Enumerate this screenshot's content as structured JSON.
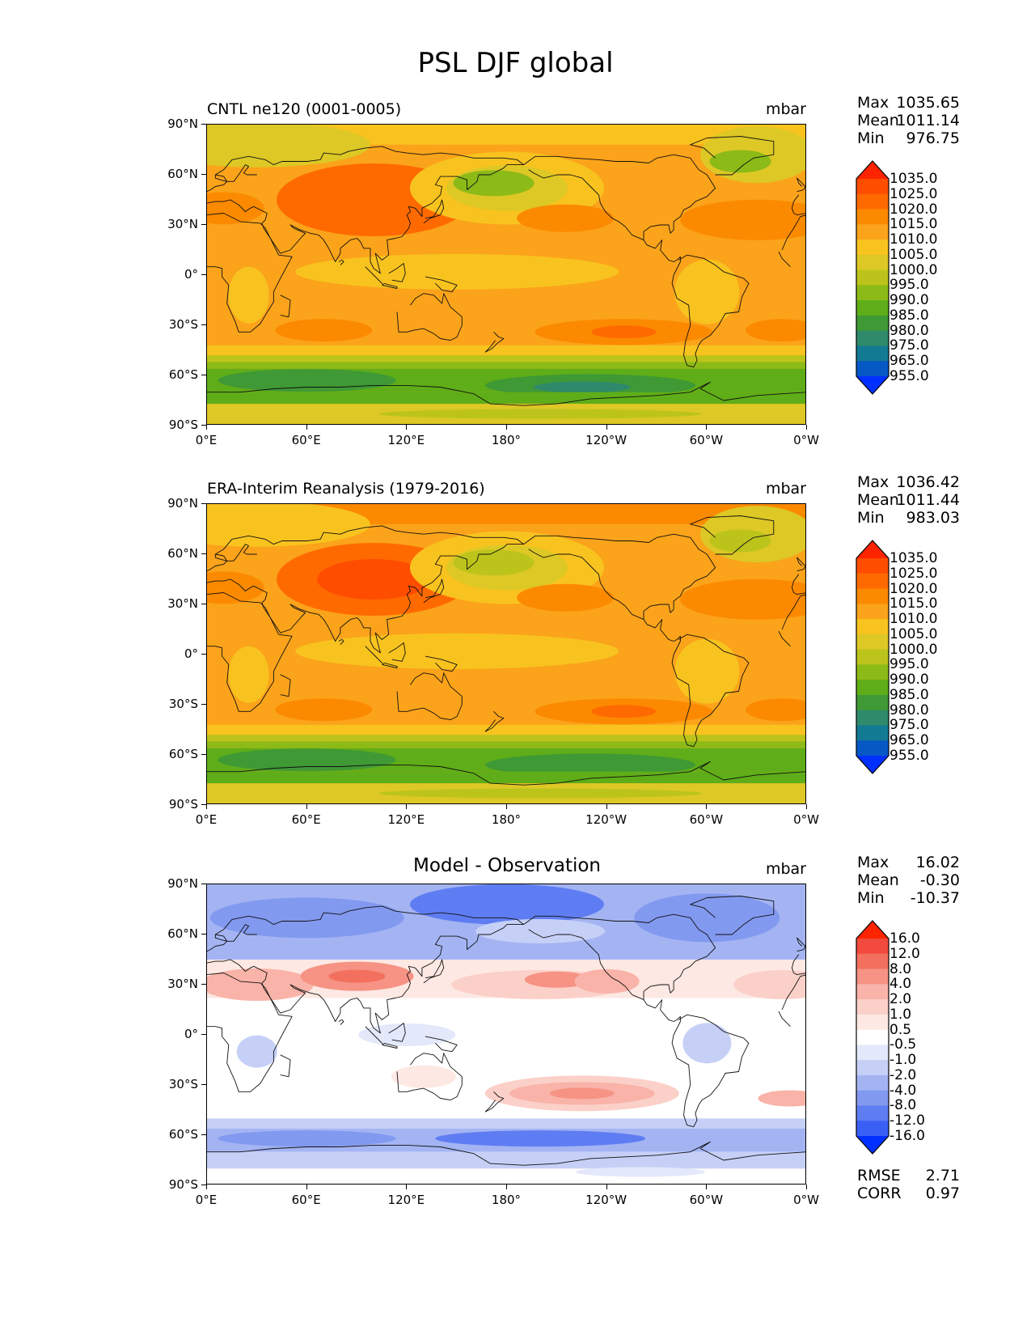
{
  "figure_title": "PSL DJF global",
  "chart_data": [
    {
      "type": "heatmap",
      "title": "CNTL ne120 (0001-0005)",
      "units": "mbar",
      "x_ticks": [
        "0°E",
        "60°E",
        "120°E",
        "180°",
        "120°W",
        "60°W",
        "0°W"
      ],
      "y_ticks": [
        "90°N",
        "60°N",
        "30°N",
        "0°",
        "30°S",
        "60°S",
        "90°S"
      ],
      "stats": {
        "max_label": "Max",
        "max": "1035.65",
        "mean_label": "Mean",
        "mean": "1011.14",
        "min_label": "Min",
        "min": "976.75"
      },
      "colorbar_levels": [
        "1035.0",
        "1025.0",
        "1020.0",
        "1015.0",
        "1010.0",
        "1005.0",
        "1000.0",
        "995.0",
        "990.0",
        "985.0",
        "980.0",
        "975.0",
        "965.0",
        "955.0"
      ],
      "colorbar_colors": [
        "#ff2400",
        "#ff4d00",
        "#ff6a00",
        "#fc8a00",
        "#fba31a",
        "#f8c31f",
        "#ddc825",
        "#bcc41b",
        "#8cba17",
        "#5fad18",
        "#3f9935",
        "#2e8a6a",
        "#137a93",
        "#0658c4",
        "#0030ff"
      ]
    },
    {
      "type": "heatmap",
      "title": "ERA-Interim Reanalysis (1979-2016)",
      "units": "mbar",
      "x_ticks": [
        "0°E",
        "60°E",
        "120°E",
        "180°",
        "120°W",
        "60°W",
        "0°W"
      ],
      "y_ticks": [
        "90°N",
        "60°N",
        "30°N",
        "0°",
        "30°S",
        "60°S",
        "90°S"
      ],
      "stats": {
        "max_label": "Max",
        "max": "1036.42",
        "mean_label": "Mean",
        "mean": "1011.44",
        "min_label": "Min",
        "min": "983.03"
      },
      "colorbar_levels": [
        "1035.0",
        "1025.0",
        "1020.0",
        "1015.0",
        "1010.0",
        "1005.0",
        "1000.0",
        "995.0",
        "990.0",
        "985.0",
        "980.0",
        "975.0",
        "965.0",
        "955.0"
      ],
      "colorbar_colors": [
        "#ff2400",
        "#ff4d00",
        "#ff6a00",
        "#fc8a00",
        "#fba31a",
        "#f8c31f",
        "#ddc825",
        "#bcc41b",
        "#8cba17",
        "#5fad18",
        "#3f9935",
        "#2e8a6a",
        "#137a93",
        "#0658c4",
        "#0030ff"
      ]
    },
    {
      "type": "heatmap",
      "title": "Model - Observation",
      "units": "mbar",
      "x_ticks": [
        "0°E",
        "60°E",
        "120°E",
        "180°",
        "120°W",
        "60°W",
        "0°W"
      ],
      "y_ticks": [
        "90°N",
        "60°N",
        "30°N",
        "0°",
        "30°S",
        "60°S",
        "90°S"
      ],
      "stats": {
        "max_label": "Max",
        "max": "16.02",
        "mean_label": "Mean",
        "mean": "-0.30",
        "min_label": "Min",
        "min": "-10.37"
      },
      "colorbar_levels": [
        "16.0",
        "12.0",
        "8.0",
        "4.0",
        "2.0",
        "1.0",
        "0.5",
        "-0.5",
        "-1.0",
        "-2.0",
        "-4.0",
        "-8.0",
        "-12.0",
        "-16.0"
      ],
      "colorbar_colors": [
        "#ff2400",
        "#f24a3c",
        "#f3705f",
        "#f69384",
        "#f9b3a8",
        "#fbd0c8",
        "#fde8e3",
        "#ffffff",
        "#e3e8fb",
        "#c6d0f7",
        "#a4b4f3",
        "#8299f0",
        "#5f7df2",
        "#3a5ff5",
        "#0030ff"
      ],
      "rmse_label": "RMSE",
      "rmse": "2.71",
      "corr_label": "CORR",
      "corr": "0.97"
    }
  ]
}
